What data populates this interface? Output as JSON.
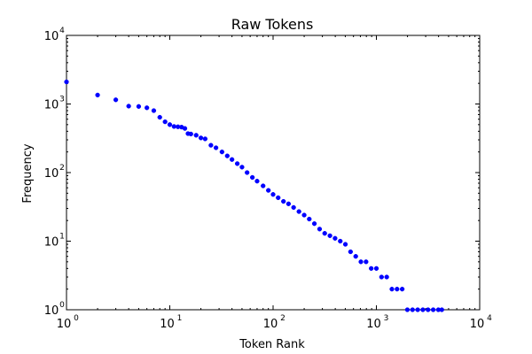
{
  "chart_data": {
    "type": "scatter",
    "title": "Raw Tokens",
    "xlabel": "Token Rank",
    "ylabel": "Frequency",
    "xscale": "log",
    "yscale": "log",
    "xlim": [
      1,
      10000
    ],
    "ylim": [
      1,
      10000
    ],
    "grid": false,
    "legend": "none",
    "marker_color": "#0000ff",
    "x_ticks": [
      {
        "base": "10",
        "exp": "0"
      },
      {
        "base": "10",
        "exp": "1"
      },
      {
        "base": "10",
        "exp": "2"
      },
      {
        "base": "10",
        "exp": "3"
      },
      {
        "base": "10",
        "exp": "4"
      }
    ],
    "y_ticks": [
      {
        "base": "10",
        "exp": "0"
      },
      {
        "base": "10",
        "exp": "1"
      },
      {
        "base": "10",
        "exp": "2"
      },
      {
        "base": "10",
        "exp": "3"
      },
      {
        "base": "10",
        "exp": "4"
      }
    ],
    "series": [
      {
        "x": [
          1,
          2,
          3,
          4,
          5,
          6,
          7,
          8,
          9,
          10,
          11,
          12,
          13,
          14,
          15,
          16,
          18,
          20,
          22,
          25,
          28,
          32,
          36,
          40,
          45,
          50,
          56,
          63,
          70,
          80,
          90,
          100,
          112,
          126,
          141,
          158,
          178,
          200,
          224,
          251,
          282,
          316,
          355,
          398,
          447,
          501,
          562,
          631,
          708,
          794,
          891,
          1000,
          1122,
          1259,
          1413,
          1585,
          1778,
          1995,
          2239,
          2512,
          2818,
          3162,
          3548,
          3981,
          4300
        ],
        "y": [
          2100,
          1350,
          1150,
          930,
          920,
          880,
          800,
          640,
          550,
          500,
          470,
          465,
          460,
          440,
          370,
          365,
          350,
          320,
          310,
          250,
          230,
          200,
          175,
          155,
          135,
          120,
          100,
          85,
          75,
          64,
          55,
          48,
          43,
          38,
          35,
          31,
          27,
          24,
          21,
          18,
          15,
          13,
          12,
          11,
          10,
          9,
          7,
          6,
          5,
          5,
          4,
          4,
          3,
          3,
          2,
          2,
          2,
          1,
          1,
          1,
          1,
          1,
          1,
          1,
          1
        ]
      }
    ]
  }
}
